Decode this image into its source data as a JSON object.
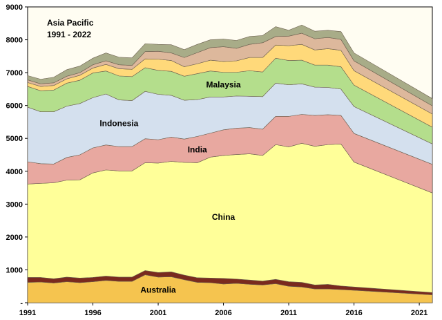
{
  "chart_data": {
    "type": "area",
    "stacked": true,
    "title": "Asia Pacific",
    "subtitle": "1991 - 2022",
    "xlabel": "",
    "ylabel": "",
    "ylim": [
      0,
      9000
    ],
    "xlim": [
      1991,
      2022
    ],
    "x_ticks": [
      "1991",
      "1996",
      "2001",
      "2006",
      "2011",
      "2016",
      "2021"
    ],
    "y_ticks": [
      "-",
      "1000",
      "2000",
      "3000",
      "4000",
      "5000",
      "6000",
      "7000",
      "8000",
      "9000"
    ],
    "grid": false,
    "background": "#fffdf2",
    "x": [
      1991,
      1992,
      1993,
      1994,
      1995,
      1996,
      1997,
      1998,
      1999,
      2000,
      2001,
      2002,
      2003,
      2004,
      2005,
      2006,
      2007,
      2008,
      2009,
      2010,
      2011,
      2012,
      2013,
      2014,
      2015,
      2016,
      2022
    ],
    "series": [
      {
        "name": "Australia",
        "color": "#f5c44f",
        "values": [
          620,
          630,
          600,
          640,
          610,
          640,
          680,
          650,
          650,
          850,
          780,
          790,
          700,
          620,
          610,
          570,
          590,
          560,
          540,
          580,
          500,
          480,
          420,
          420,
          400,
          380,
          240
        ]
      },
      {
        "name": "",
        "color": "#7a2a1e",
        "values": [
          150,
          140,
          130,
          140,
          140,
          130,
          130,
          130,
          130,
          130,
          140,
          150,
          140,
          140,
          140,
          170,
          130,
          130,
          120,
          130,
          140,
          140,
          120,
          140,
          110,
          100,
          70
        ]
      },
      {
        "name": "China",
        "color": "#ffff99",
        "values": [
          2840,
          2860,
          2920,
          2950,
          2990,
          3180,
          3230,
          3230,
          3230,
          3280,
          3330,
          3360,
          3430,
          3500,
          3680,
          3740,
          3790,
          3840,
          3820,
          4100,
          4100,
          4230,
          4220,
          4250,
          4320,
          3800,
          3030
        ]
      },
      {
        "name": "India",
        "color": "#e8a8a0",
        "values": [
          680,
          600,
          570,
          690,
          760,
          760,
          760,
          740,
          740,
          730,
          710,
          740,
          710,
          800,
          730,
          780,
          800,
          800,
          800,
          860,
          930,
          880,
          940,
          910,
          870,
          870,
          870
        ]
      },
      {
        "name": "Indonesia",
        "color": "#d4e0ee",
        "values": [
          1660,
          1580,
          1590,
          1560,
          1560,
          1530,
          1550,
          1420,
          1400,
          1440,
          1380,
          1270,
          1180,
          1120,
          1100,
          1000,
          980,
          950,
          990,
          1010,
          960,
          930,
          860,
          830,
          800,
          820,
          620
        ]
      },
      {
        "name": "Malaysia",
        "color": "#b4de8c",
        "values": [
          630,
          640,
          660,
          700,
          710,
          750,
          700,
          730,
          730,
          720,
          730,
          730,
          730,
          790,
          790,
          750,
          720,
          780,
          750,
          760,
          740,
          720,
          670,
          680,
          680,
          650,
          510
        ]
      },
      {
        "name": "",
        "color": "#ffd97a",
        "values": [
          120,
          130,
          140,
          130,
          150,
          150,
          200,
          220,
          220,
          270,
          340,
          330,
          290,
          300,
          330,
          330,
          350,
          400,
          440,
          400,
          450,
          480,
          460,
          500,
          500,
          440,
          400
        ]
      },
      {
        "name": "",
        "color": "#ddb89c",
        "values": [
          80,
          80,
          80,
          80,
          80,
          100,
          110,
          120,
          120,
          220,
          240,
          230,
          280,
          340,
          380,
          450,
          380,
          400,
          450,
          260,
          290,
          340,
          340,
          340,
          330,
          300,
          250
        ]
      },
      {
        "name": "",
        "color": "#a8ac88",
        "values": [
          130,
          140,
          170,
          200,
          200,
          200,
          240,
          230,
          230,
          240,
          210,
          250,
          240,
          250,
          240,
          230,
          240,
          240,
          220,
          300,
          180,
          250,
          230,
          220,
          240,
          240,
          220
        ]
      }
    ],
    "annotations": [
      "Australia",
      "China",
      "India",
      "Indonesia",
      "Malaysia"
    ]
  }
}
